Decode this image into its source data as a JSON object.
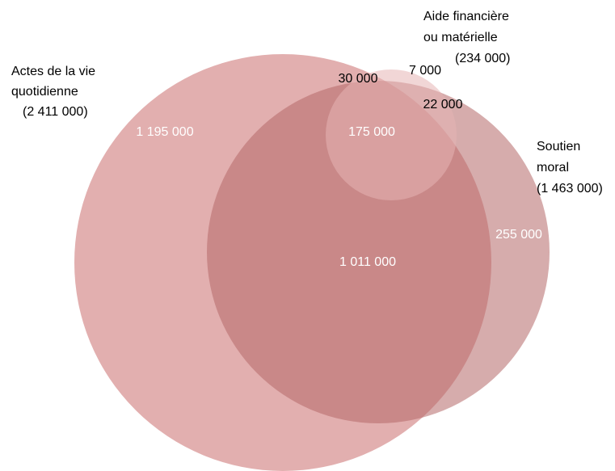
{
  "diagram": {
    "type": "venn",
    "sets": [
      {
        "id": "quotidienne",
        "label_lines": [
          "Actes de la vie",
          "quotidienne",
          "(2 411 000)"
        ],
        "color": "#d07e7e"
      },
      {
        "id": "moral",
        "label_lines": [
          "Soutien",
          "moral",
          "(1 463 000)"
        ],
        "color": "#b56868"
      },
      {
        "id": "financiere",
        "label_lines": [
          "Aide financière",
          "ou matérielle",
          "(234 000)"
        ],
        "color": "#e6b4b4"
      }
    ],
    "regions": [
      {
        "id": "quotidienne_only",
        "value": "1 195 000",
        "text_color": "#ffffff"
      },
      {
        "id": "quotidienne_moral",
        "value": "1 011 000",
        "text_color": "#ffffff"
      },
      {
        "id": "all_three",
        "value": "175 000",
        "text_color": "#ffffff"
      },
      {
        "id": "moral_only",
        "value": "255 000",
        "text_color": "#ffffff"
      },
      {
        "id": "quotidienne_financiere",
        "value": "30 000",
        "text_color": "#000000"
      },
      {
        "id": "financiere_only",
        "value": "7 000",
        "text_color": "#000000"
      },
      {
        "id": "moral_financiere",
        "value": "22 000",
        "text_color": "#000000"
      }
    ]
  }
}
